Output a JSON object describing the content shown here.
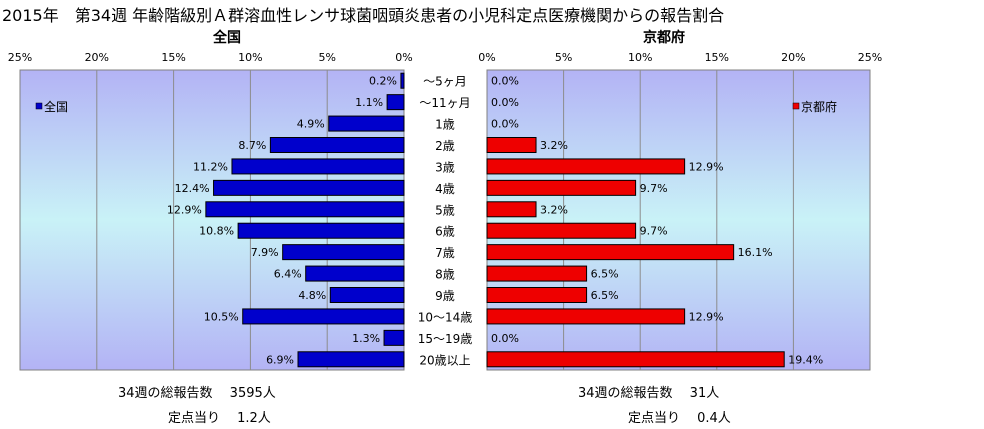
{
  "title": "2015年　第34週 年齢階級別Ａ群溶血性レンサ球菌咽頭炎患者の小児科定点医療機関からの報告割合",
  "colors": {
    "national": "#0000cc",
    "kyoto": "#ee0000"
  },
  "chart_data": {
    "type": "bar",
    "orientation": "horizontal-butterfly",
    "categories": [
      "～5ヶ月",
      "～11ヶ月",
      "1歳",
      "2歳",
      "3歳",
      "4歳",
      "5歳",
      "6歳",
      "7歳",
      "8歳",
      "9歳",
      "10～14歳",
      "15～19歳",
      "20歳以上"
    ],
    "xlim": [
      0,
      25
    ],
    "ticks": [
      "0%",
      "5%",
      "10%",
      "15%",
      "20%",
      "25%"
    ],
    "series": [
      {
        "name": "全国",
        "panel_title": "全国",
        "legend": "全国",
        "values": [
          0.2,
          1.1,
          4.9,
          8.7,
          11.2,
          12.4,
          12.9,
          10.8,
          7.9,
          6.4,
          4.8,
          10.5,
          1.3,
          6.9
        ],
        "labels": [
          "0.2%",
          "1.1%",
          "4.9%",
          "8.7%",
          "11.2%",
          "12.4%",
          "12.9%",
          "10.8%",
          "7.9%",
          "6.4%",
          "4.8%",
          "10.5%",
          "1.3%",
          "6.9%"
        ]
      },
      {
        "name": "京都府",
        "panel_title": "京都府",
        "legend": "京都府",
        "values": [
          0.0,
          0.0,
          0.0,
          3.2,
          12.9,
          9.7,
          3.2,
          9.7,
          16.1,
          6.5,
          6.5,
          12.9,
          0.0,
          19.4
        ],
        "labels": [
          "0.0%",
          "0.0%",
          "0.0%",
          "3.2%",
          "12.9%",
          "9.7%",
          "3.2%",
          "9.7%",
          "16.1%",
          "6.5%",
          "6.5%",
          "12.9%",
          "0.0%",
          "19.4%"
        ]
      }
    ]
  },
  "footer": {
    "national_total": "34週の総報告数　 3595人",
    "national_per": "定点当り　 1.2人",
    "kyoto_total": "34週の総報告数　 31人",
    "kyoto_per": "定点当り　 0.4人"
  }
}
